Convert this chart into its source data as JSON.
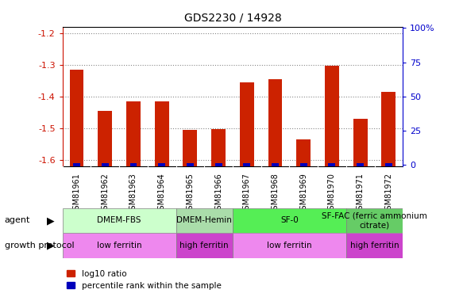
{
  "title": "GDS2230 / 14928",
  "samples": [
    "GSM81961",
    "GSM81962",
    "GSM81963",
    "GSM81964",
    "GSM81965",
    "GSM81966",
    "GSM81967",
    "GSM81968",
    "GSM81969",
    "GSM81970",
    "GSM81971",
    "GSM81972"
  ],
  "log10_ratio": [
    -1.315,
    -1.445,
    -1.415,
    -1.415,
    -1.505,
    -1.503,
    -1.355,
    -1.345,
    -1.535,
    -1.302,
    -1.47,
    -1.385
  ],
  "percentile_rank": [
    2,
    2,
    2,
    2,
    2,
    2,
    2,
    2,
    2,
    2,
    2,
    2
  ],
  "ylim_left": [
    -1.62,
    -1.18
  ],
  "ylim_right": [
    -1,
    101
  ],
  "yticks_left": [
    -1.6,
    -1.5,
    -1.4,
    -1.3,
    -1.2
  ],
  "yticks_right": [
    0,
    25,
    50,
    75,
    100
  ],
  "bar_color": "#cc2200",
  "percentile_color": "#0000bb",
  "grid_color": "#888888",
  "agent_groups": [
    {
      "label": "DMEM-FBS",
      "start": 0,
      "end": 4,
      "color": "#ccffcc"
    },
    {
      "label": "DMEM-Hemin",
      "start": 4,
      "end": 6,
      "color": "#aaddaa"
    },
    {
      "label": "SF-0",
      "start": 6,
      "end": 10,
      "color": "#55ee55"
    },
    {
      "label": "SF-FAC (ferric ammonium\ncitrate)",
      "start": 10,
      "end": 12,
      "color": "#66cc66"
    }
  ],
  "protocol_groups": [
    {
      "label": "low ferritin",
      "start": 0,
      "end": 4,
      "color": "#ee88ee"
    },
    {
      "label": "high ferritin",
      "start": 4,
      "end": 6,
      "color": "#cc44cc"
    },
    {
      "label": "low ferritin",
      "start": 6,
      "end": 10,
      "color": "#ee88ee"
    },
    {
      "label": "high ferritin",
      "start": 10,
      "end": 12,
      "color": "#cc44cc"
    }
  ],
  "agent_label": "agent",
  "protocol_label": "growth protocol",
  "legend_red": "log10 ratio",
  "legend_blue": "percentile rank within the sample",
  "bar_width": 0.5,
  "plot_bg": "#ffffff",
  "sample_bg": "#dddddd"
}
